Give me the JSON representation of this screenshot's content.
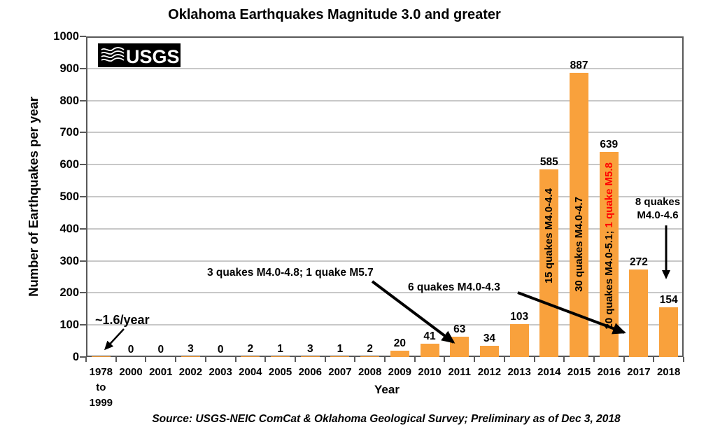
{
  "logo": {
    "text": "USGS"
  },
  "chart_data": {
    "type": "bar",
    "title": "Oklahoma Earthquakes Magnitude 3.0 and greater",
    "xlabel": "Year",
    "ylabel": "Number of Earthquakes per year",
    "ylim": [
      0,
      1000
    ],
    "ytick_interval": 100,
    "grid": true,
    "legend": false,
    "bar_color": "#F9A13C",
    "categories": [
      "1978 to 1999",
      "2000",
      "2001",
      "2002",
      "2003",
      "2004",
      "2005",
      "2006",
      "2007",
      "2008",
      "2009",
      "2010",
      "2011",
      "2012",
      "2013",
      "2014",
      "2015",
      "2016",
      "2017",
      "2018"
    ],
    "values": [
      1.6,
      0,
      0,
      3,
      0,
      2,
      1,
      3,
      1,
      2,
      20,
      41,
      63,
      34,
      103,
      585,
      887,
      639,
      272,
      154
    ],
    "value_labels": [
      "",
      "0",
      "0",
      "3",
      "0",
      "2",
      "1",
      "3",
      "1",
      "2",
      "20",
      "41",
      "63",
      "34",
      "103",
      "585",
      "887",
      "639",
      "272",
      "154"
    ],
    "in_bar_labels": [
      {
        "category": "2014",
        "text": "15 quakes M4.0-4.4",
        "highlight": "",
        "highlight_color": ""
      },
      {
        "category": "2015",
        "text": "30 quakes M4.0-4.7",
        "highlight": "",
        "highlight_color": ""
      },
      {
        "category": "2016",
        "text": "20 quakes M4.0-5.1; ",
        "highlight": "1 quake M5.8",
        "highlight_color": "#FF0000"
      }
    ],
    "annotations": {
      "avg_rate": "~1.6/year",
      "note_2011": "3 quakes M4.0-4.8; 1 quake M5.7",
      "note_2017": "6 quakes M4.0-4.3",
      "note_2018": "8 quakes M4.0-4.6"
    }
  },
  "source": "Source: USGS-NEIC ComCat & Oklahoma Geological Survey; Preliminary as of Dec 3, 2018"
}
